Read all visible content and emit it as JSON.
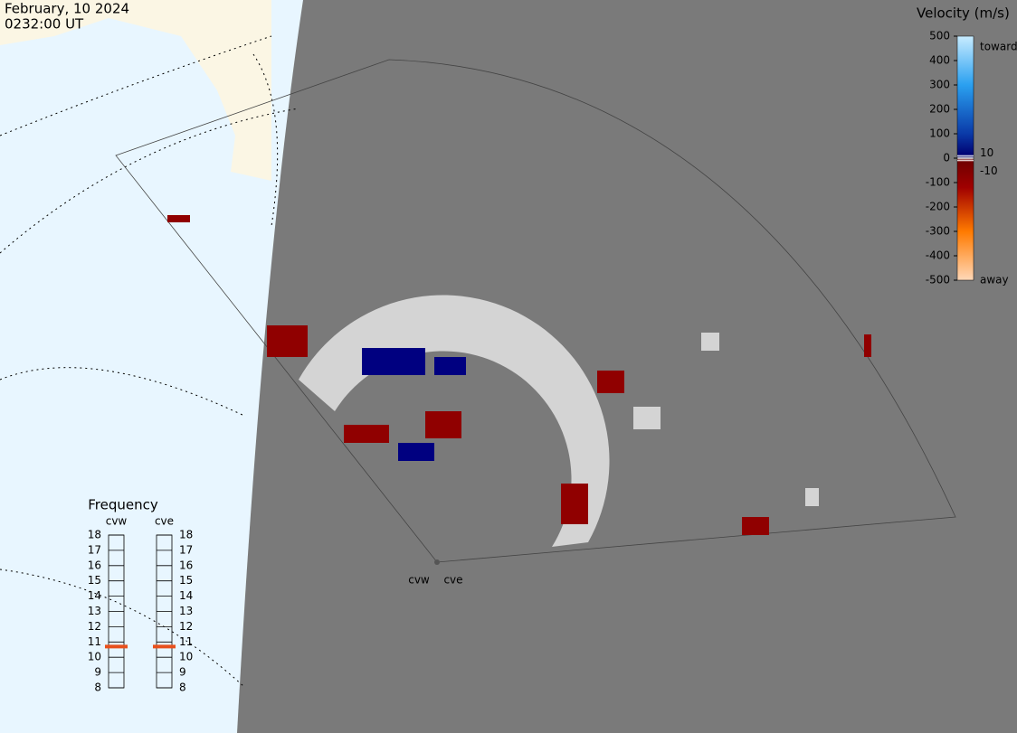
{
  "header": {
    "date": "February, 10 2024",
    "time": "0232:00 UT"
  },
  "velocity_scale": {
    "title": "Velocity (m/s)",
    "lim": [
      -500,
      500
    ],
    "ticks": [
      500,
      400,
      300,
      200,
      100,
      0,
      -100,
      -200,
      -300,
      -400,
      -500
    ],
    "inner_ticks": [
      10,
      -10
    ],
    "toward": "toward",
    "away": "away"
  },
  "frequency": {
    "title": "Frequency",
    "lim": [
      8,
      18
    ],
    "ticks": [
      18,
      17,
      16,
      15,
      14,
      13,
      12,
      11,
      10,
      9,
      8
    ],
    "radars": [
      {
        "name": "cvw",
        "value": 10.7
      },
      {
        "name": "cve",
        "value": 10.7
      }
    ]
  },
  "map_labels": [
    "cvw",
    "cve"
  ]
}
